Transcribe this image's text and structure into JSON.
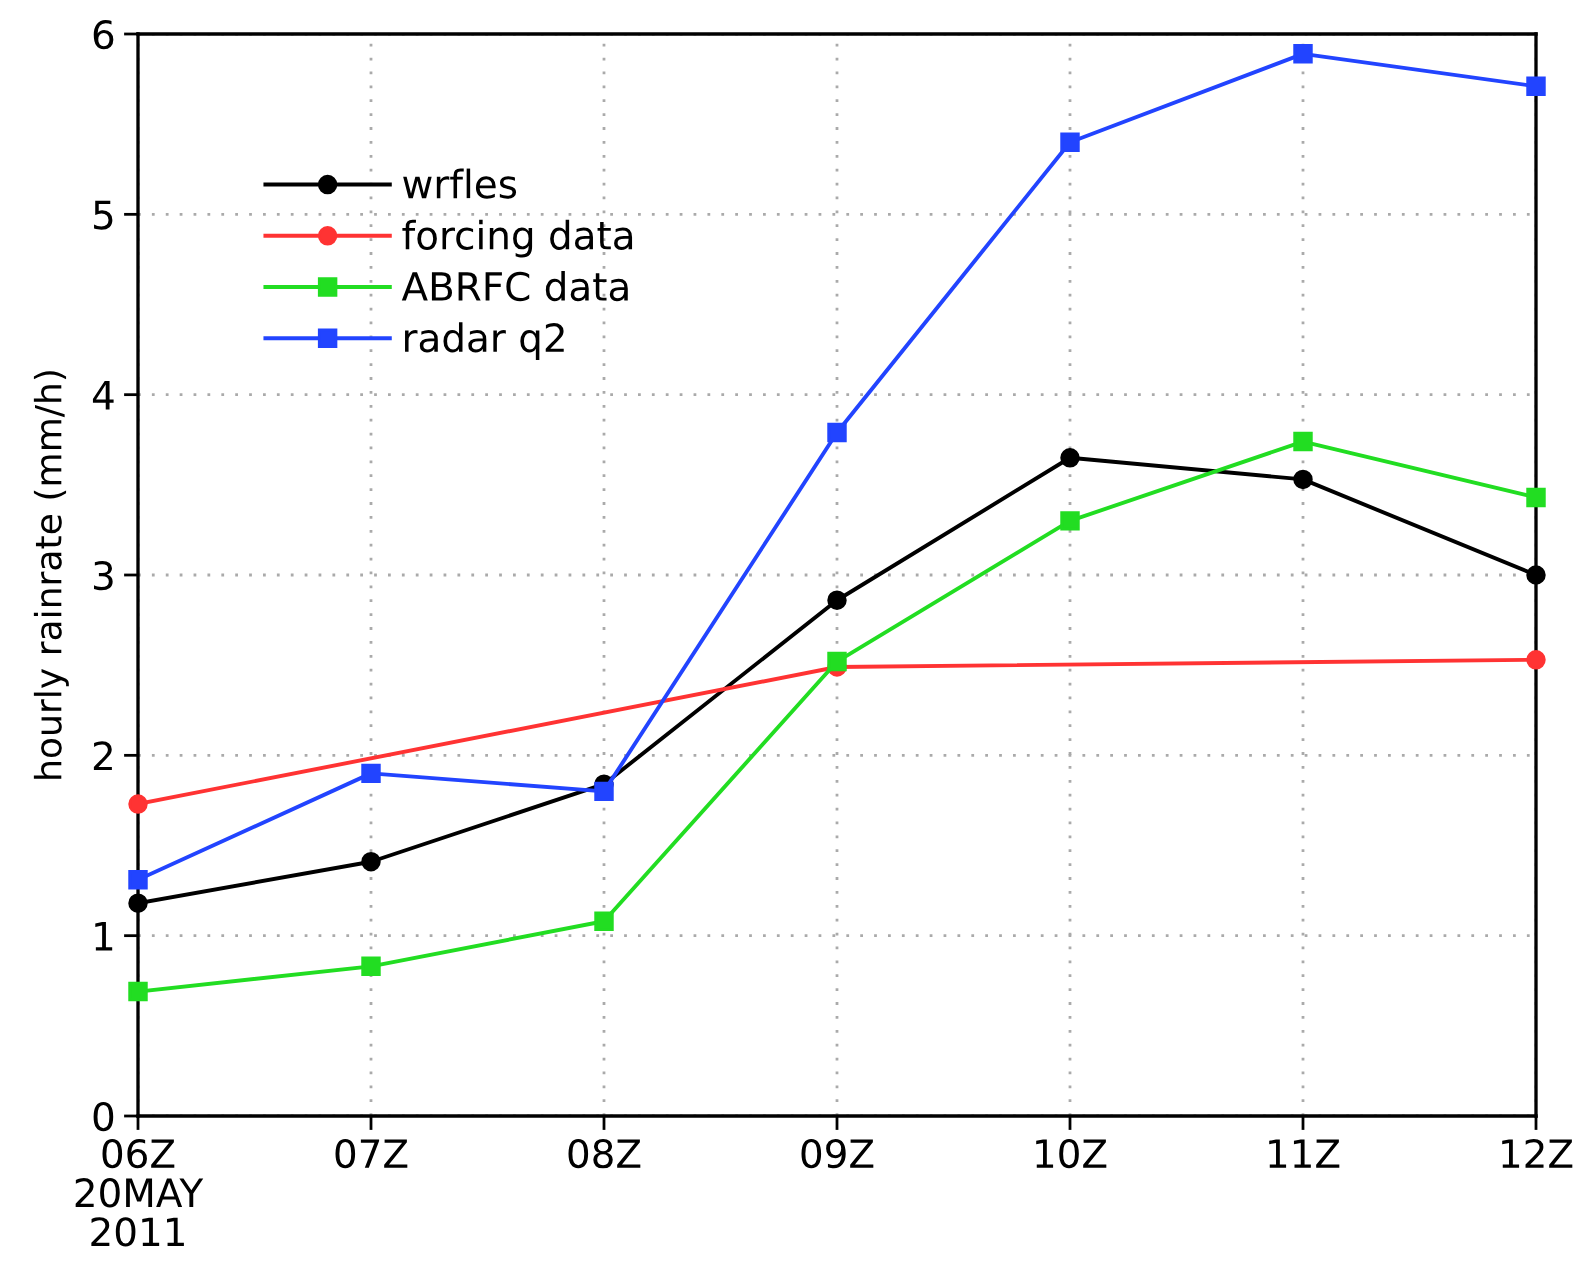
{
  "chart_data": {
    "type": "line",
    "ylabel": "hourly rainrate (mm/h)",
    "x": [
      6,
      7,
      8,
      9,
      10,
      11,
      12
    ],
    "xlim": [
      6,
      12
    ],
    "xticks": [
      {
        "value": 6,
        "label": "06Z\n20MAY\n2011"
      },
      {
        "value": 7,
        "label": "07Z"
      },
      {
        "value": 8,
        "label": "08Z"
      },
      {
        "value": 9,
        "label": "09Z"
      },
      {
        "value": 10,
        "label": "10Z"
      },
      {
        "value": 11,
        "label": "11Z"
      },
      {
        "value": 12,
        "label": "12Z"
      }
    ],
    "ylim": [
      0,
      6
    ],
    "yticks": [
      0,
      1,
      2,
      3,
      4,
      5,
      6
    ],
    "grid": true,
    "legend": "top left",
    "line_style": "solid",
    "series": [
      {
        "name": "wrfles",
        "color": "#000000",
        "marker": "circle",
        "values": [
          1.18,
          1.41,
          1.84,
          2.86,
          3.65,
          3.53,
          3.0
        ]
      },
      {
        "name": "forcing data",
        "color": "#ff3333",
        "marker": "circle",
        "x": [
          6,
          9,
          12
        ],
        "values": [
          1.73,
          2.49,
          2.53
        ]
      },
      {
        "name": "ABRFC data",
        "color": "#22dd22",
        "marker": "square",
        "values": [
          0.69,
          0.83,
          1.08,
          2.52,
          3.3,
          3.74,
          3.43
        ]
      },
      {
        "name": "radar q2",
        "color": "#2244ff",
        "marker": "square",
        "values": [
          1.31,
          1.9,
          1.8,
          3.79,
          5.4,
          5.89,
          5.71
        ]
      }
    ]
  }
}
